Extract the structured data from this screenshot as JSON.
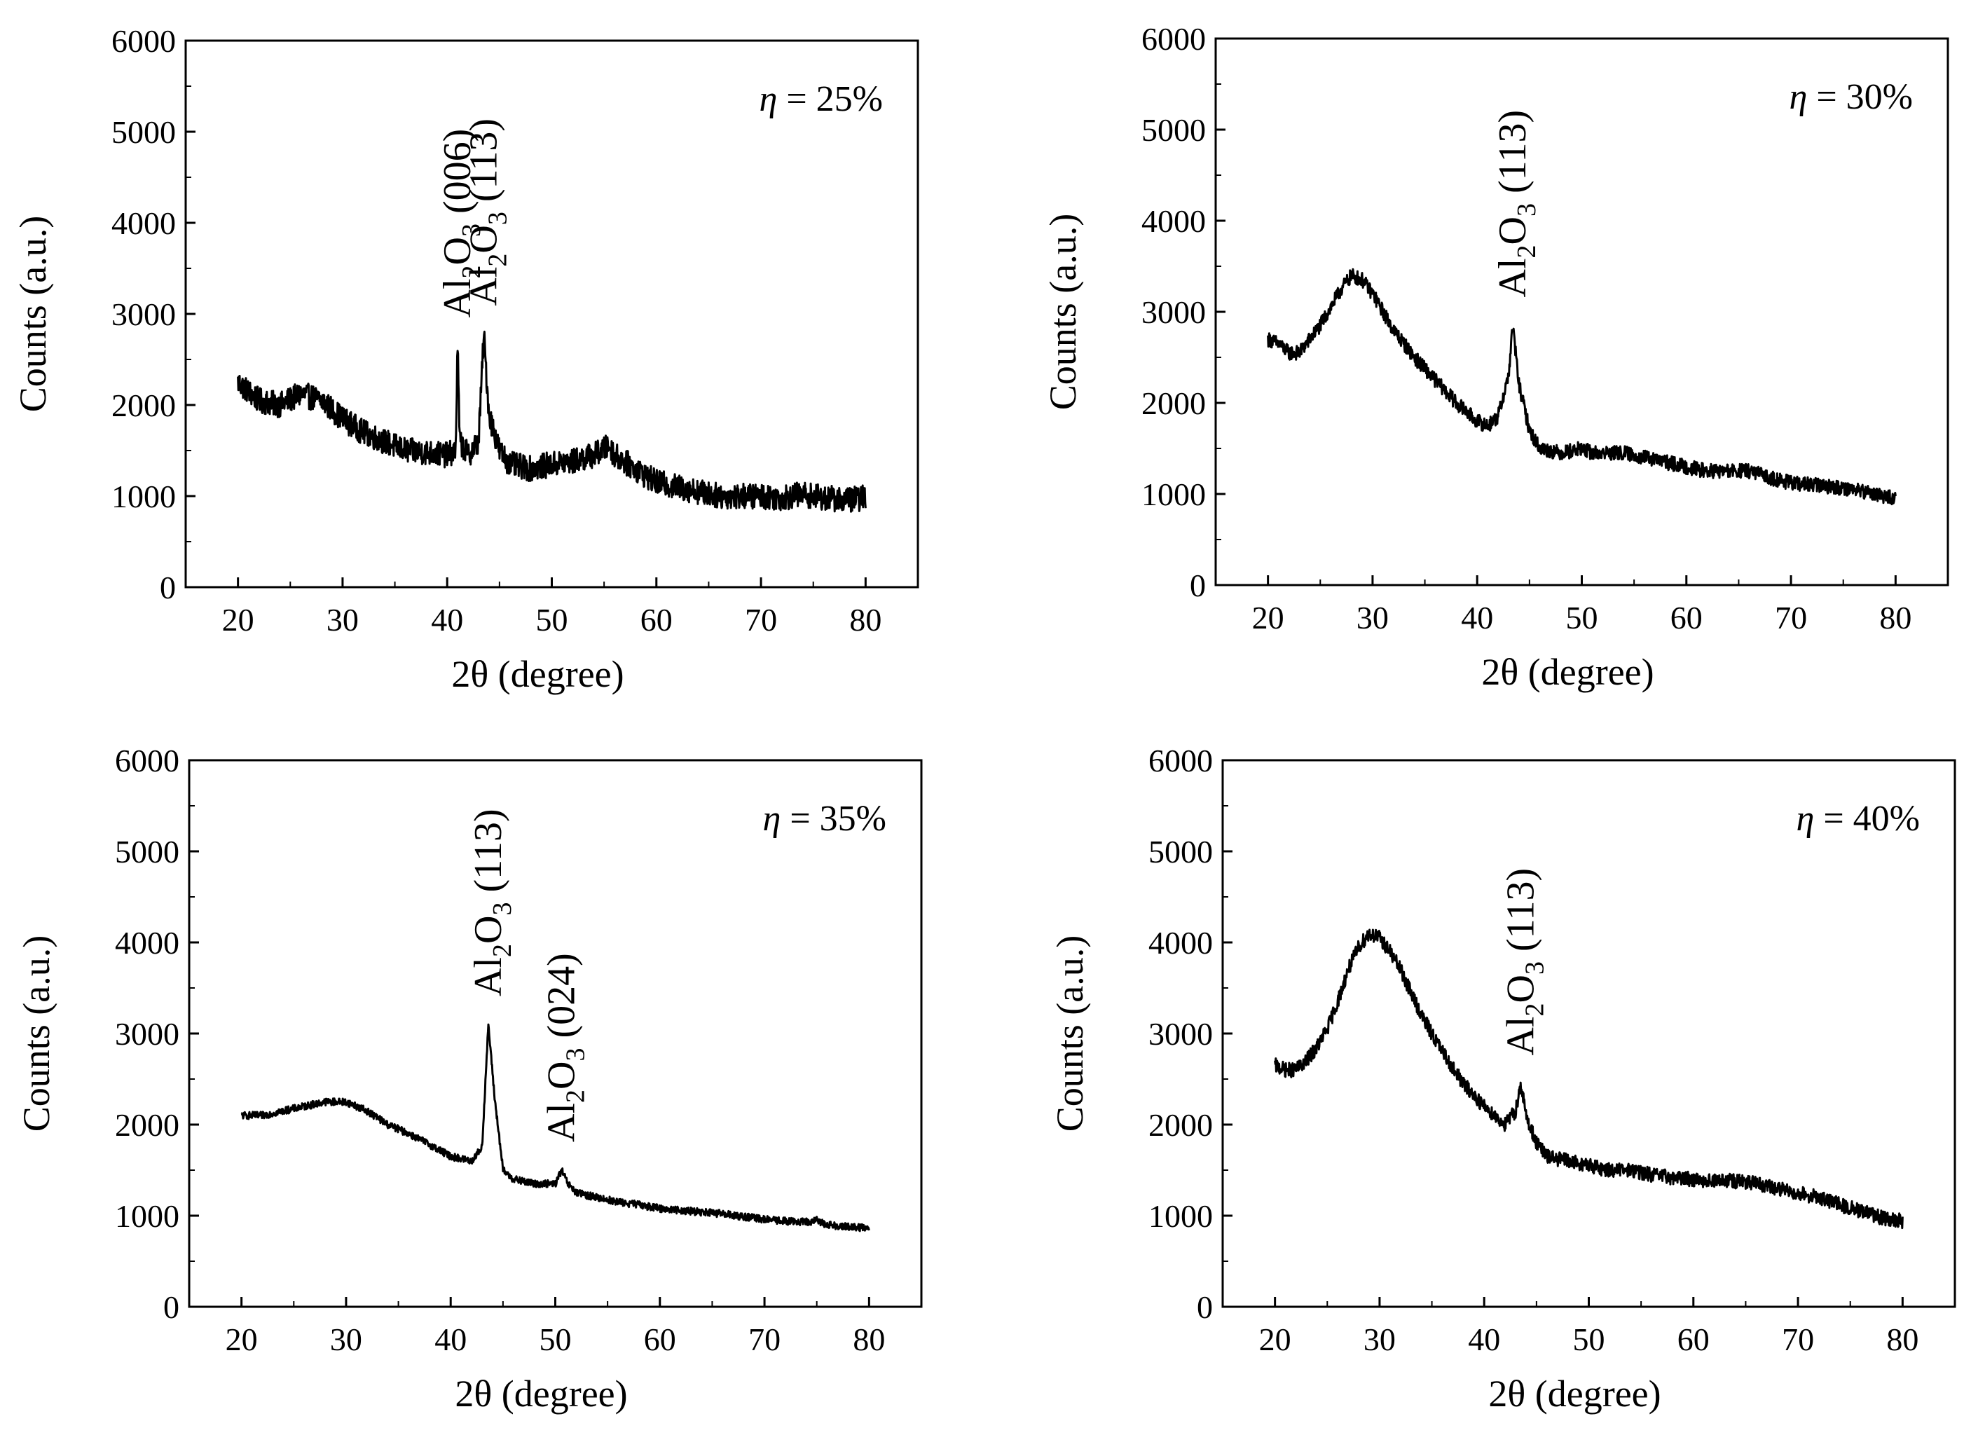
{
  "figure": {
    "description_panels": 4,
    "line_color": "#000000",
    "background": "#ffffff"
  },
  "chart_data": [
    {
      "type": "line",
      "panel": "top-left",
      "label_italic": "η",
      "label_rest": " = 25%",
      "xlabel": "2θ (degree)",
      "ylabel": "Counts (a.u.)",
      "xlim": [
        15,
        85
      ],
      "ylim": [
        0,
        6000
      ],
      "xticks": [
        20,
        30,
        40,
        50,
        60,
        70,
        80
      ],
      "yticks": [
        0,
        1000,
        2000,
        3000,
        4000,
        5000,
        6000
      ],
      "series_points": [
        [
          20,
          2250
        ],
        [
          22,
          2050
        ],
        [
          24,
          2000
        ],
        [
          26,
          2120
        ],
        [
          28,
          2050
        ],
        [
          30,
          1850
        ],
        [
          32,
          1700
        ],
        [
          34,
          1600
        ],
        [
          36,
          1500
        ],
        [
          38,
          1480
        ],
        [
          40,
          1450
        ],
        [
          40.8,
          1500
        ],
        [
          41.0,
          2650
        ],
        [
          41.2,
          1600
        ],
        [
          42,
          1450
        ],
        [
          43,
          1600
        ],
        [
          43.5,
          2780
        ],
        [
          44,
          1900
        ],
        [
          45,
          1500
        ],
        [
          46,
          1350
        ],
        [
          48,
          1300
        ],
        [
          50,
          1350
        ],
        [
          52,
          1380
        ],
        [
          54,
          1450
        ],
        [
          55.5,
          1550
        ],
        [
          56,
          1450
        ],
        [
          58,
          1300
        ],
        [
          60,
          1150
        ],
        [
          62,
          1100
        ],
        [
          64,
          1050
        ],
        [
          66,
          1000
        ],
        [
          68,
          1000
        ],
        [
          70,
          1000
        ],
        [
          72,
          980
        ],
        [
          74,
          1020
        ],
        [
          76,
          980
        ],
        [
          78,
          960
        ],
        [
          80,
          980
        ]
      ],
      "noise": 140,
      "annotations": [
        {
          "sub1": "2",
          "sub2": "3",
          "hkl": "(006)",
          "x": 41.0,
          "text_prefix": "Al",
          "text_mid": "O"
        },
        {
          "sub1": "2",
          "sub2": "3",
          "hkl": "(113)",
          "x": 43.5,
          "text_prefix": "Al",
          "text_mid": "O"
        }
      ]
    },
    {
      "type": "line",
      "panel": "top-right",
      "label_italic": "η",
      "label_rest": " = 30%",
      "xlabel": "2θ (degree)",
      "ylabel": "Counts (a.u.)",
      "xlim": [
        15,
        85
      ],
      "ylim": [
        0,
        6000
      ],
      "xticks": [
        20,
        30,
        40,
        50,
        60,
        70,
        80
      ],
      "yticks": [
        0,
        1000,
        2000,
        3000,
        4000,
        5000,
        6000
      ],
      "series_points": [
        [
          20,
          2700
        ],
        [
          21,
          2650
        ],
        [
          22,
          2550
        ],
        [
          23,
          2550
        ],
        [
          24,
          2700
        ],
        [
          25,
          2850
        ],
        [
          26,
          3050
        ],
        [
          27,
          3250
        ],
        [
          28,
          3400
        ],
        [
          29,
          3350
        ],
        [
          30,
          3200
        ],
        [
          31,
          3000
        ],
        [
          32,
          2800
        ],
        [
          34,
          2500
        ],
        [
          36,
          2250
        ],
        [
          38,
          2000
        ],
        [
          40,
          1800
        ],
        [
          41,
          1750
        ],
        [
          42,
          1850
        ],
        [
          43,
          2300
        ],
        [
          43.4,
          2850
        ],
        [
          44,
          2200
        ],
        [
          45,
          1700
        ],
        [
          46,
          1500
        ],
        [
          48,
          1450
        ],
        [
          50,
          1500
        ],
        [
          51,
          1450
        ],
        [
          52,
          1450
        ],
        [
          54,
          1450
        ],
        [
          56,
          1400
        ],
        [
          58,
          1350
        ],
        [
          60,
          1300
        ],
        [
          62,
          1250
        ],
        [
          64,
          1250
        ],
        [
          66,
          1250
        ],
        [
          68,
          1180
        ],
        [
          70,
          1120
        ],
        [
          72,
          1100
        ],
        [
          74,
          1080
        ],
        [
          76,
          1050
        ],
        [
          78,
          1000
        ],
        [
          80,
          950
        ]
      ],
      "noise": 80,
      "annotations": [
        {
          "sub1": "2",
          "sub2": "3",
          "hkl": "(113)",
          "x": 43.4,
          "text_prefix": "Al",
          "text_mid": "O"
        }
      ]
    },
    {
      "type": "line",
      "panel": "bottom-left",
      "label_italic": "η",
      "label_rest": " = 35%",
      "xlabel": "2θ (degree)",
      "ylabel": "Counts (a.u.)",
      "xlim": [
        15,
        85
      ],
      "ylim": [
        0,
        6000
      ],
      "xticks": [
        20,
        30,
        40,
        50,
        60,
        70,
        80
      ],
      "yticks": [
        0,
        1000,
        2000,
        3000,
        4000,
        5000,
        6000
      ],
      "series_points": [
        [
          20,
          2100
        ],
        [
          22,
          2100
        ],
        [
          24,
          2150
        ],
        [
          26,
          2200
        ],
        [
          28,
          2250
        ],
        [
          30,
          2250
        ],
        [
          32,
          2150
        ],
        [
          34,
          2000
        ],
        [
          36,
          1900
        ],
        [
          38,
          1780
        ],
        [
          40,
          1650
        ],
        [
          42,
          1600
        ],
        [
          43,
          1750
        ],
        [
          43.6,
          3100
        ],
        [
          44.2,
          2300
        ],
        [
          45,
          1500
        ],
        [
          46,
          1400
        ],
        [
          48,
          1350
        ],
        [
          50,
          1350
        ],
        [
          50.6,
          1500
        ],
        [
          51.2,
          1350
        ],
        [
          52,
          1250
        ],
        [
          54,
          1200
        ],
        [
          56,
          1150
        ],
        [
          58,
          1120
        ],
        [
          60,
          1080
        ],
        [
          62,
          1060
        ],
        [
          64,
          1040
        ],
        [
          66,
          1020
        ],
        [
          68,
          990
        ],
        [
          70,
          960
        ],
        [
          72,
          940
        ],
        [
          74,
          930
        ],
        [
          75,
          950
        ],
        [
          76,
          900
        ],
        [
          78,
          880
        ],
        [
          80,
          860
        ]
      ],
      "noise": 40,
      "annotations": [
        {
          "sub1": "2",
          "sub2": "3",
          "hkl": "(113)",
          "x": 43.6,
          "text_prefix": "Al",
          "text_mid": "O"
        },
        {
          "sub1": "2",
          "sub2": "3",
          "hkl": "(024)",
          "x": 50.6,
          "text_prefix": "Al",
          "text_mid": "O"
        }
      ]
    },
    {
      "type": "line",
      "panel": "bottom-right",
      "label_italic": "η",
      "label_rest": " = 40%",
      "xlabel": "2θ (degree)",
      "ylabel": "Counts (a.u.)",
      "xlim": [
        15,
        85
      ],
      "ylim": [
        0,
        6000
      ],
      "xticks": [
        20,
        30,
        40,
        50,
        60,
        70,
        80
      ],
      "yticks": [
        0,
        1000,
        2000,
        3000,
        4000,
        5000,
        6000
      ],
      "series_points": [
        [
          20,
          2650
        ],
        [
          21,
          2600
        ],
        [
          22,
          2600
        ],
        [
          23,
          2700
        ],
        [
          24,
          2850
        ],
        [
          25,
          3050
        ],
        [
          26,
          3350
        ],
        [
          27,
          3700
        ],
        [
          28,
          3950
        ],
        [
          29,
          4100
        ],
        [
          30,
          4050
        ],
        [
          31,
          3900
        ],
        [
          32,
          3700
        ],
        [
          34,
          3200
        ],
        [
          36,
          2800
        ],
        [
          38,
          2450
        ],
        [
          40,
          2200
        ],
        [
          41,
          2100
        ],
        [
          42,
          2000
        ],
        [
          43,
          2150
        ],
        [
          43.5,
          2450
        ],
        [
          44,
          2100
        ],
        [
          45,
          1800
        ],
        [
          46,
          1650
        ],
        [
          48,
          1600
        ],
        [
          50,
          1550
        ],
        [
          52,
          1500
        ],
        [
          54,
          1500
        ],
        [
          56,
          1450
        ],
        [
          58,
          1420
        ],
        [
          60,
          1400
        ],
        [
          62,
          1380
        ],
        [
          64,
          1380
        ],
        [
          66,
          1350
        ],
        [
          68,
          1300
        ],
        [
          70,
          1250
        ],
        [
          72,
          1200
        ],
        [
          74,
          1120
        ],
        [
          76,
          1050
        ],
        [
          78,
          980
        ],
        [
          80,
          940
        ]
      ],
      "noise": 80,
      "annotations": [
        {
          "sub1": "2",
          "sub2": "3",
          "hkl": "(113)",
          "x": 43.5,
          "text_prefix": "Al",
          "text_mid": "O"
        }
      ]
    }
  ]
}
